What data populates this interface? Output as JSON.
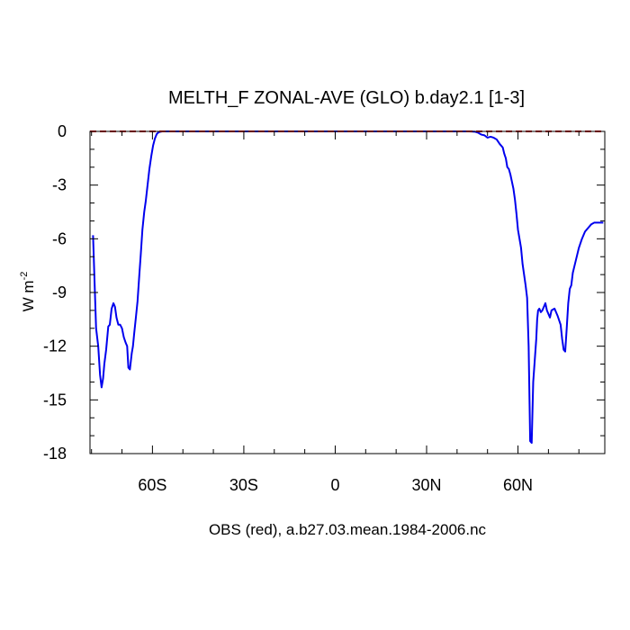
{
  "chart_data": {
    "type": "line",
    "title": "MELTH_F ZONAL-AVE (GLO) b.day2.1 [1-3]",
    "xlabel": "OBS (red), a.b27.03.mean.1984-2006.nc",
    "ylabel": "W m",
    "ylabel_sup": "-2",
    "xlim": [
      -80.5,
      88.5
    ],
    "ylim": [
      -18,
      0
    ],
    "x_ticks": [
      {
        "value": -60,
        "label": "60S"
      },
      {
        "value": -30,
        "label": "30S"
      },
      {
        "value": 0,
        "label": "0"
      },
      {
        "value": 30,
        "label": "30N"
      },
      {
        "value": 60,
        "label": "60N"
      }
    ],
    "y_ticks": [
      {
        "value": 0,
        "label": "0"
      },
      {
        "value": -3,
        "label": "-3"
      },
      {
        "value": -6,
        "label": "-6"
      },
      {
        "value": -9,
        "label": "-9"
      },
      {
        "value": -12,
        "label": "-12"
      },
      {
        "value": -15,
        "label": "-15"
      },
      {
        "value": -18,
        "label": "-18"
      }
    ],
    "series": [
      {
        "color": "#0000ee",
        "x": [
          -79.5,
          -78.5,
          -77.8,
          -77.2,
          -76.7,
          -76.2,
          -75.8,
          -75.2,
          -74.5,
          -74.0,
          -73.4,
          -72.8,
          -72.3,
          -71.8,
          -71.2,
          -70.6,
          -70.0,
          -69.4,
          -68.8,
          -68.3,
          -67.9,
          -67.4,
          -66.8,
          -66.4,
          -66.0,
          -65.5,
          -64.9,
          -64.3,
          -63.8,
          -63.3,
          -62.7,
          -62.2,
          -61.6,
          -61.0,
          -60.4,
          -59.8,
          -59.2,
          -58.6,
          -58.0,
          -57.4,
          -56.8,
          -56.2,
          -55.5,
          -54.8,
          -54.0,
          -53.0,
          -52.0,
          -51.0,
          -50.0,
          -40,
          -20,
          0,
          20,
          40,
          44,
          46,
          47,
          48,
          49,
          50,
          51,
          52,
          53,
          54,
          55,
          55.5,
          56,
          56.5,
          57,
          57.5,
          58,
          58.5,
          59,
          59.5,
          60,
          60.5,
          61,
          61.5,
          62,
          62.5,
          63,
          63.5,
          64,
          64.5,
          65,
          65.5,
          66,
          66.3,
          66.6,
          67,
          67.5,
          68,
          68.5,
          69,
          69.5,
          70,
          70.5,
          71,
          72,
          73,
          74,
          74.5,
          75,
          75.5,
          76,
          76.5,
          77,
          77.5,
          78,
          79,
          80,
          81,
          82,
          83,
          84,
          85,
          86,
          87,
          88
        ],
        "y": [
          -5.8,
          -11.0,
          -12.0,
          -13.6,
          -14.3,
          -13.8,
          -13.0,
          -12.2,
          -10.9,
          -10.8,
          -9.9,
          -9.6,
          -9.8,
          -10.4,
          -10.8,
          -10.8,
          -11.0,
          -11.5,
          -11.8,
          -12.0,
          -13.2,
          -13.3,
          -12.4,
          -12.0,
          -11.3,
          -10.5,
          -9.5,
          -8.0,
          -6.8,
          -5.5,
          -4.5,
          -3.9,
          -3.0,
          -2.1,
          -1.4,
          -0.8,
          -0.4,
          -0.15,
          -0.05,
          -0.02,
          0,
          0,
          0,
          0,
          0,
          0,
          0,
          0,
          0,
          0,
          0,
          0,
          0,
          0,
          0,
          -0.02,
          -0.08,
          -0.18,
          -0.22,
          -0.35,
          -0.3,
          -0.35,
          -0.45,
          -0.7,
          -0.9,
          -1.25,
          -1.5,
          -2.0,
          -2.1,
          -2.4,
          -2.8,
          -3.2,
          -3.8,
          -4.6,
          -5.5,
          -6.0,
          -6.5,
          -7.4,
          -8.0,
          -8.6,
          -9.3,
          -12.0,
          -17.3,
          -17.4,
          -14.0,
          -12.8,
          -11.6,
          -10.5,
          -10.0,
          -9.9,
          -10.1,
          -10.0,
          -9.8,
          -9.6,
          -10.0,
          -10.2,
          -10.4,
          -10.0,
          -9.9,
          -10.3,
          -10.8,
          -11.6,
          -12.2,
          -12.3,
          -11.0,
          -9.6,
          -8.8,
          -8.6,
          -7.9,
          -7.2,
          -6.5,
          -6.0,
          -5.6,
          -5.4,
          -5.2,
          -5.1,
          -5.1,
          -5.1,
          -5.1
        ]
      },
      {
        "color": "#cc0000",
        "dashed": true,
        "x": [
          -80.5,
          88.5
        ],
        "y": [
          0,
          0
        ]
      }
    ],
    "grid": false
  }
}
